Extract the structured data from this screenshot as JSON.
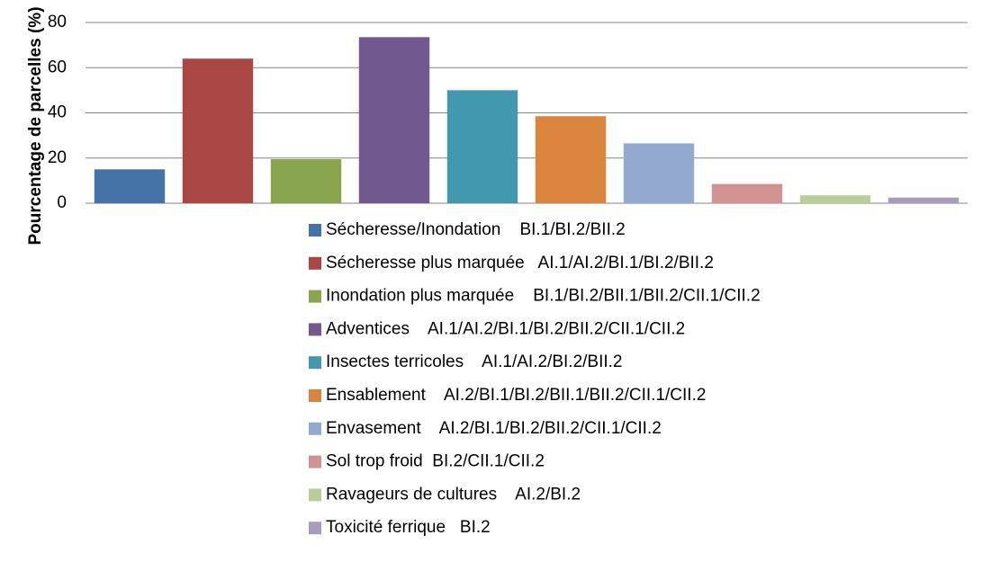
{
  "chart_data": {
    "type": "bar",
    "y_label": "Pourcentage de parcelles (%)",
    "categories": [
      null
    ],
    "series": [
      {
        "name": "Sécheresse/Inondation    BI.1/BI.2/BII.2",
        "color": "#4572a7",
        "values": [
          15
        ]
      },
      {
        "name": "Sécheresse plus marquée   AI.1/AI.2/BI.1/BI.2/BII.2",
        "color": "#aa4643",
        "values": [
          64
        ]
      },
      {
        "name": "Inondation plus marquée    BI.1/BI.2/BII.1/BII.2/CII.1/CII.2",
        "color": "#89a54e",
        "values": [
          19.5
        ]
      },
      {
        "name": "Adventices    AI.1/AI.2/BI.1/BI.2/BII.2/CII.1/CII.2",
        "color": "#71588f",
        "values": [
          73.5
        ]
      },
      {
        "name": "Insectes terricoles    AI.1/AI.2/BI.2/BII.2",
        "color": "#4198af",
        "values": [
          50
        ]
      },
      {
        "name": "Ensablement    AI.2/BI.1/BI.2/BII.1/BII.2/CII.1/CII.2",
        "color": "#db843d",
        "values": [
          38.5
        ]
      },
      {
        "name": "Envasement    AI.2/BI.1/BI.2/BII.2/CII.1/CII.2",
        "color": "#93a9cf",
        "values": [
          26.5
        ]
      },
      {
        "name": "Sol trop froid  BI.2/CII.1/CII.2",
        "color": "#d19392",
        "values": [
          8.5
        ]
      },
      {
        "name": "Ravageurs de cultures    AI.2/BI.2",
        "color": "#b9cd96",
        "values": [
          3.5
        ]
      },
      {
        "name": "Toxicité ferrique   BI.2",
        "color": "#a99bbd",
        "values": [
          2.5
        ]
      }
    ],
    "ylim": [
      0,
      80
    ],
    "yticks": [
      0,
      20,
      40,
      60,
      80
    ],
    "grid": true
  }
}
